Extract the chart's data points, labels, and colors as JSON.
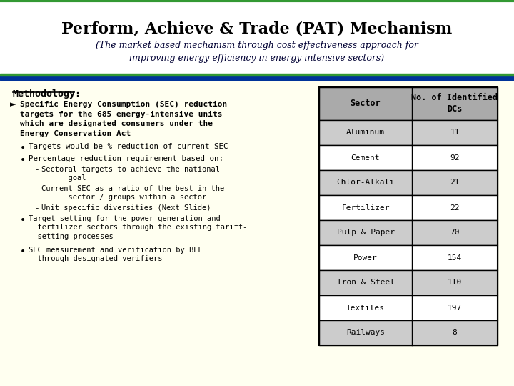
{
  "title": "Perform, Achieve & Trade (PAT) Mechanism",
  "subtitle": "(The market based mechanism through cost effectiveness approach for\nimproving energy efficiency in energy intensive sectors)",
  "bg_color": "#FFFFF0",
  "header_bg": "#FFFFFF",
  "header_bar_color": "#003399",
  "green_line_color": "#339933",
  "table_header": [
    "Sector",
    "No. of Identified\nDCs"
  ],
  "table_rows": [
    [
      "Aluminum",
      "11"
    ],
    [
      "Cement",
      "92"
    ],
    [
      "Chlor-Alkali",
      "21"
    ],
    [
      "Fertilizer",
      "22"
    ],
    [
      "Pulp & Paper",
      "70"
    ],
    [
      "Power",
      "154"
    ],
    [
      "Iron & Steel",
      "110"
    ],
    [
      "Textiles",
      "197"
    ],
    [
      "Railways",
      "8"
    ]
  ],
  "table_header_bg": "#AAAAAA",
  "table_row_bg_odd": "#CCCCCC",
  "table_row_bg_even": "#FFFFFF",
  "table_border_color": "#000000"
}
